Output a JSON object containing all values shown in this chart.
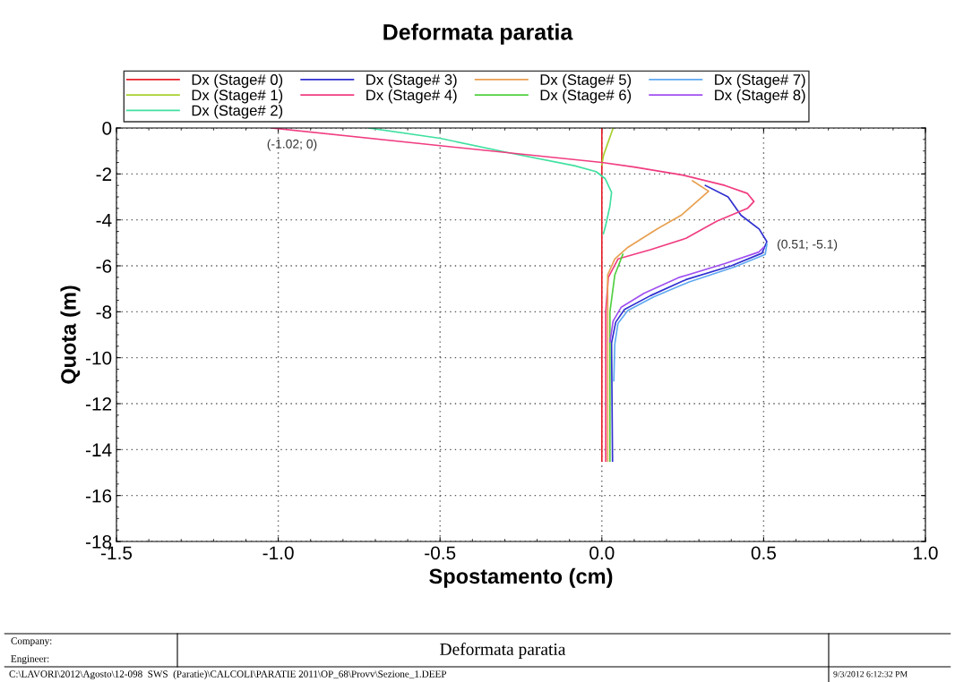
{
  "chart_data": {
    "type": "line",
    "title": "Deformata paratia",
    "xlabel": "Spostamento (cm)",
    "ylabel": "Quota (m)",
    "xlim": [
      -1.5,
      1.0
    ],
    "ylim": [
      -18,
      0
    ],
    "xticks": [
      {
        "value": -1.5,
        "label": "-1.5"
      },
      {
        "value": -1.0,
        "label": "-1.0"
      },
      {
        "value": -0.5,
        "label": "-0.5"
      },
      {
        "value": 0.0,
        "label": "0.0"
      },
      {
        "value": 0.5,
        "label": "0.5"
      },
      {
        "value": 1.0,
        "label": "1.0"
      }
    ],
    "yticks": [
      0,
      -2,
      -4,
      -6,
      -8,
      -10,
      -12,
      -14,
      -16,
      -18
    ],
    "grid": true,
    "legend": "top",
    "line_style": "solid",
    "marker": "none",
    "series": [
      {
        "name": "Dx (Stage# 0)",
        "color": "#e8202a",
        "x": [
          0,
          0
        ],
        "values": [
          0,
          -14.5
        ]
      },
      {
        "name": "Dx (Stage# 1)",
        "color": "#a8d030",
        "x": [
          0.035,
          0.02,
          0.005,
          0
        ],
        "values": [
          0,
          -0.6,
          -1.2,
          -1.6
        ]
      },
      {
        "name": "Dx (Stage# 2)",
        "color": "#40e0a0",
        "x": [
          -0.72,
          -0.5,
          -0.28,
          -0.085,
          -0.018,
          0.01,
          0.03,
          0.025,
          0.012,
          0.005
        ],
        "values": [
          0,
          -0.45,
          -1.1,
          -1.64,
          -1.9,
          -2.2,
          -2.8,
          -3.4,
          -4.23,
          -4.6
        ]
      },
      {
        "name": "Dx (Stage# 3)",
        "color": "#3030d0",
        "x": [
          0.32,
          0.39,
          0.43,
          0.486,
          0.51,
          0.495,
          0.4,
          0.26,
          0.15,
          0.07,
          0.043,
          0.03,
          0.033
        ],
        "values": [
          -2.5,
          -3.0,
          -3.8,
          -4.4,
          -4.95,
          -5.45,
          -6.0,
          -6.6,
          -7.3,
          -7.9,
          -8.45,
          -9.35,
          -14.5
        ]
      },
      {
        "name": "Dx (Stage# 4)",
        "color": "#f03c80",
        "x": [
          -1.02,
          -0.5,
          0,
          0.1,
          0.25,
          0.38,
          0.45,
          0.47,
          0.45,
          0.356,
          0.26,
          0.15,
          0.05,
          0.02,
          0.012,
          0.012
        ],
        "values": [
          0,
          -0.77,
          -1.5,
          -1.7,
          -2.05,
          -2.5,
          -2.85,
          -3.2,
          -3.5,
          -4.05,
          -4.8,
          -5.3,
          -5.7,
          -6.5,
          -8,
          -14.5
        ]
      },
      {
        "name": "Dx (Stage# 5)",
        "color": "#e8a050",
        "x": [
          0.28,
          0.33,
          0.245,
          0.17,
          0.08,
          0.04,
          0.018,
          0.018,
          0.018
        ],
        "values": [
          -2.3,
          -2.75,
          -3.8,
          -4.4,
          -5.2,
          -5.7,
          -6.4,
          -8,
          -14.5
        ]
      },
      {
        "name": "Dx (Stage# 6)",
        "color": "#50d040",
        "x": [
          0.065,
          0.04,
          0.025,
          0.025
        ],
        "values": [
          -5.5,
          -6.4,
          -8,
          -14.5
        ]
      },
      {
        "name": "Dx (Stage# 7)",
        "color": "#60a8f0",
        "x": [
          0.51,
          0.505,
          0.41,
          0.27,
          0.16,
          0.08,
          0.05,
          0.04,
          0.037
        ],
        "values": [
          -5.05,
          -5.5,
          -6.05,
          -6.7,
          -7.35,
          -7.95,
          -8.5,
          -9.4,
          -11
        ]
      },
      {
        "name": "Dx (Stage# 8)",
        "color": "#a050f0",
        "x": [
          0.5,
          0.485,
          0.38,
          0.24,
          0.13,
          0.06,
          0.035,
          0.025
        ],
        "values": [
          -5.2,
          -5.4,
          -5.9,
          -6.5,
          -7.2,
          -7.8,
          -8.4,
          -9.3
        ]
      }
    ],
    "annotations": [
      {
        "text": "(-1.02; 0)",
        "x": -1.02,
        "y": 0
      },
      {
        "text": "(0.51; -5.1)",
        "x": 0.51,
        "y": -5.1
      },
      "Company:",
      "Engineer:",
      "Deformata paratia",
      "C:\\LAVORI\\2012\\Agosto\\12-098  SWS  (Paratie)\\CALCOLI\\PARATIE 2011\\OP_68\\Provv\\Sezione_1.DEEP",
      "9/3/2012 6:12:32 PM"
    ]
  }
}
